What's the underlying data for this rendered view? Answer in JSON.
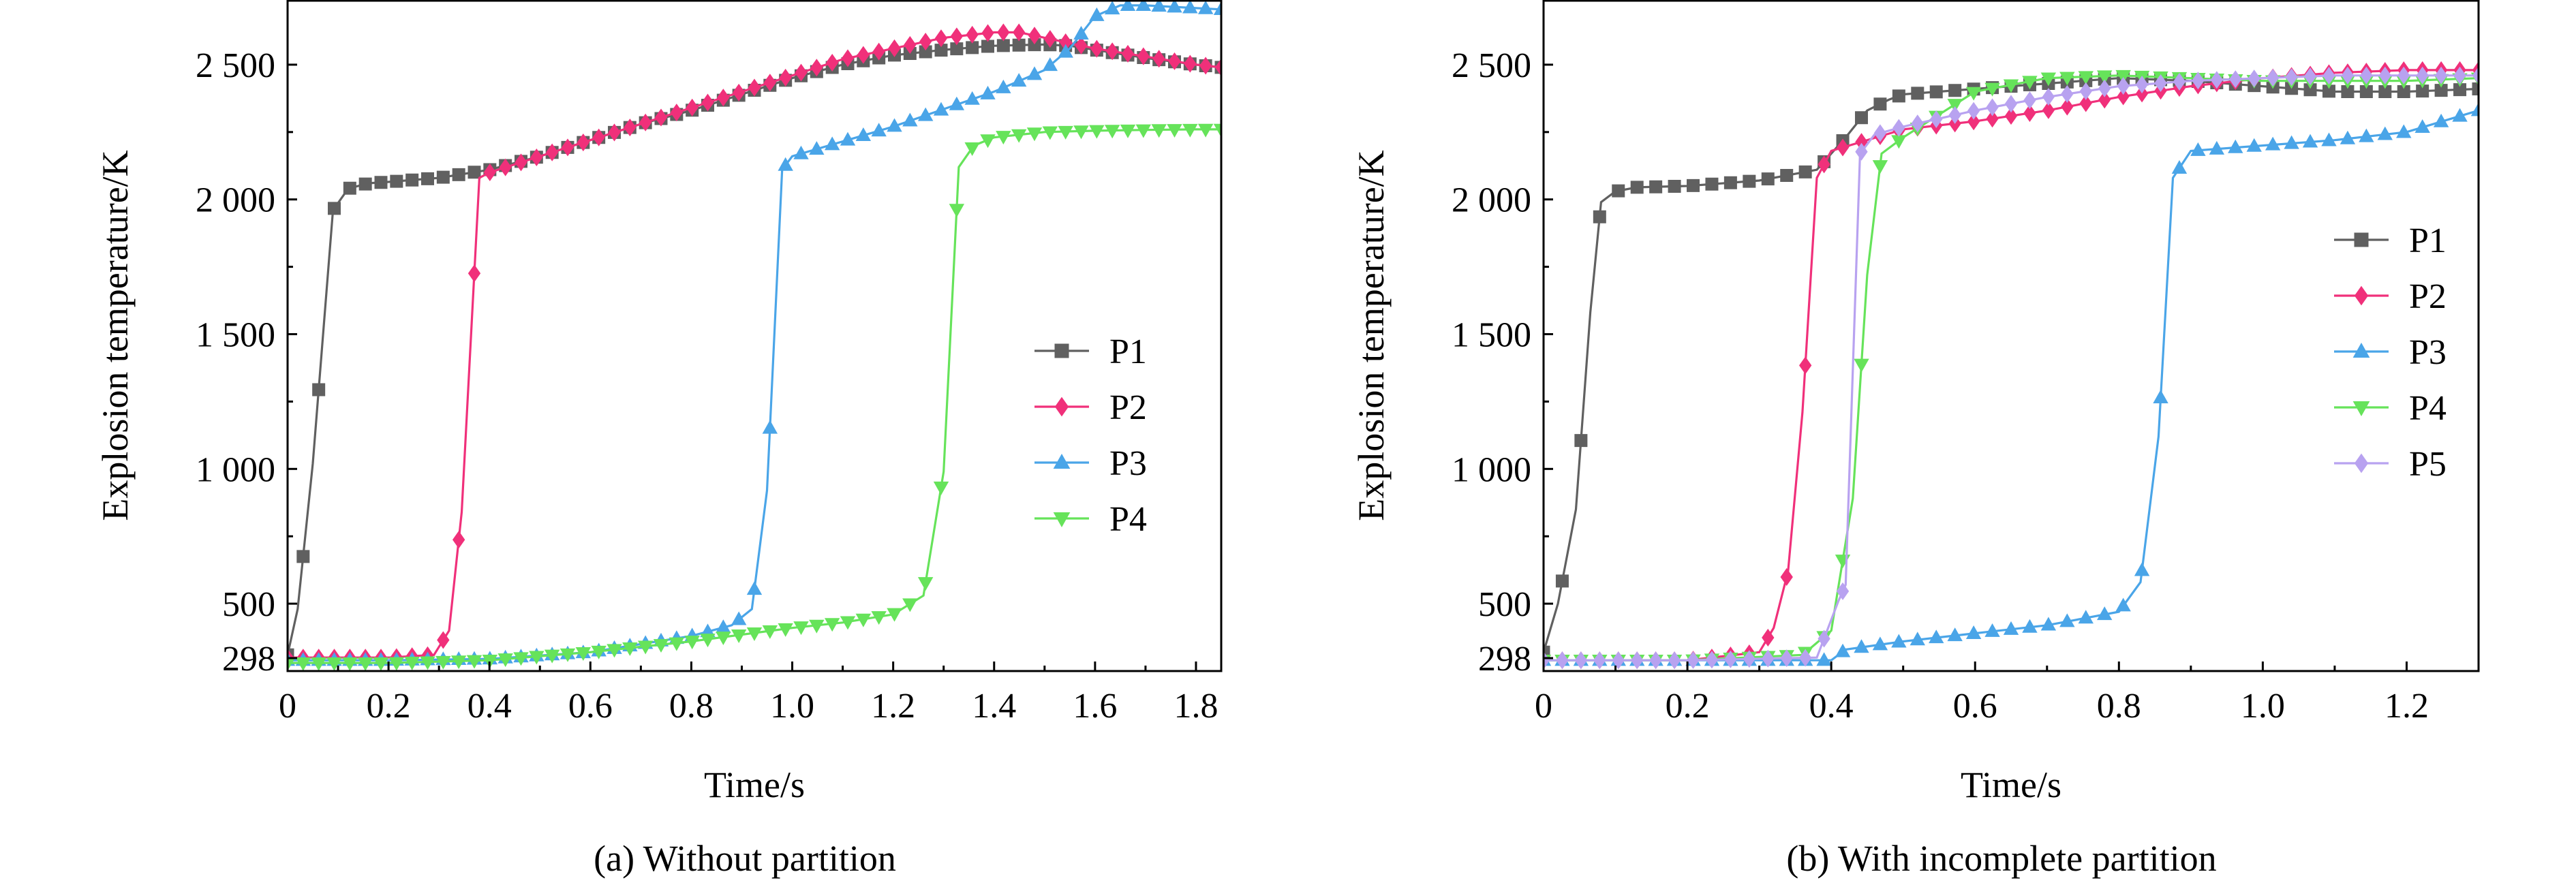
{
  "chart_data": [
    {
      "type": "line",
      "caption": "(a) Without partition",
      "xlabel": "Time/s",
      "ylabel": "Explosion temperature/K",
      "xlim": [
        0,
        1.85
      ],
      "ylim": [
        250,
        2740
      ],
      "xticks": [
        0,
        0.2,
        0.4,
        0.6,
        0.8,
        1.0,
        1.2,
        1.4,
        1.6,
        1.8
      ],
      "xtick_labels": [
        "0",
        "0.2",
        "0.4",
        "0.6",
        "0.8",
        "1.0",
        "1.2",
        "1.4",
        "1.6",
        "1.8"
      ],
      "yticks": [
        298,
        500,
        1000,
        1500,
        2000,
        2500
      ],
      "ytick_labels": [
        "298",
        "500",
        "1 000",
        "1 500",
        "2 000",
        "2 500"
      ],
      "legend_position": "right",
      "series": [
        {
          "name": "P1",
          "color": "#606060",
          "marker": "square",
          "x": [
            0,
            0.02,
            0.05,
            0.09,
            0.12,
            0.16,
            0.2,
            0.3,
            0.4,
            0.5,
            0.6,
            0.7,
            0.8,
            0.9,
            1.0,
            1.1,
            1.2,
            1.3,
            1.4,
            1.5,
            1.55,
            1.6,
            1.7,
            1.8,
            1.85
          ],
          "y": [
            310,
            480,
            1020,
            1960,
            2040,
            2060,
            2065,
            2080,
            2110,
            2160,
            2220,
            2280,
            2330,
            2390,
            2450,
            2500,
            2535,
            2555,
            2570,
            2575,
            2570,
            2555,
            2525,
            2500,
            2490
          ]
        },
        {
          "name": "P2",
          "color": "#f0307a",
          "marker": "diamond",
          "x": [
            0,
            0.1,
            0.2,
            0.29,
            0.32,
            0.345,
            0.38,
            0.4,
            0.5,
            0.6,
            0.7,
            0.8,
            0.9,
            1.0,
            1.1,
            1.2,
            1.3,
            1.4,
            1.45,
            1.5,
            1.6,
            1.7,
            1.8,
            1.85
          ],
          "y": [
            300,
            300,
            300,
            310,
            400,
            840,
            2080,
            2100,
            2160,
            2220,
            2280,
            2340,
            2400,
            2460,
            2520,
            2560,
            2600,
            2620,
            2620,
            2600,
            2560,
            2530,
            2500,
            2490
          ]
        },
        {
          "name": "P3",
          "color": "#4aa5e8",
          "marker": "triangle-up",
          "x": [
            0,
            0.2,
            0.4,
            0.6,
            0.8,
            0.88,
            0.92,
            0.95,
            0.98,
            1.0,
            1.2,
            1.4,
            1.5,
            1.55,
            1.6,
            1.65,
            1.7,
            1.8,
            1.85
          ],
          "y": [
            290,
            290,
            295,
            320,
            380,
            420,
            480,
            920,
            2110,
            2160,
            2270,
            2400,
            2480,
            2560,
            2680,
            2720,
            2720,
            2710,
            2705
          ]
        },
        {
          "name": "P4",
          "color": "#66e35a",
          "marker": "triangle-down",
          "x": [
            0,
            0.2,
            0.4,
            0.6,
            0.8,
            1.0,
            1.1,
            1.2,
            1.26,
            1.3,
            1.33,
            1.36,
            1.4,
            1.5,
            1.6,
            1.7,
            1.8,
            1.85
          ],
          "y": [
            280,
            280,
            290,
            320,
            360,
            410,
            430,
            460,
            530,
            990,
            2120,
            2200,
            2230,
            2250,
            2255,
            2258,
            2260,
            2260
          ]
        }
      ]
    },
    {
      "type": "line",
      "caption": "(b) With incomplete partition",
      "xlabel": "Time/s",
      "ylabel": "Explosion temperature/K",
      "xlim": [
        0,
        1.3
      ],
      "ylim": [
        250,
        2740
      ],
      "xticks": [
        0,
        0.2,
        0.4,
        0.6,
        0.8,
        1.0,
        1.2
      ],
      "xtick_labels": [
        "0",
        "0.2",
        "0.4",
        "0.6",
        "0.8",
        "1.0",
        "1.2"
      ],
      "yticks": [
        298,
        500,
        1000,
        1500,
        2000,
        2500
      ],
      "ytick_labels": [
        "298",
        "500",
        "1 000",
        "1 500",
        "2 000",
        "2 500"
      ],
      "legend_position": "right",
      "series": [
        {
          "name": "P1",
          "color": "#606060",
          "marker": "square",
          "x": [
            0,
            0.02,
            0.045,
            0.065,
            0.08,
            0.1,
            0.13,
            0.2,
            0.3,
            0.38,
            0.42,
            0.45,
            0.48,
            0.5,
            0.6,
            0.7,
            0.8,
            0.9,
            1.0,
            1.1,
            1.2,
            1.3
          ],
          "y": [
            320,
            500,
            850,
            1580,
            1990,
            2030,
            2045,
            2050,
            2070,
            2110,
            2230,
            2330,
            2370,
            2390,
            2410,
            2430,
            2450,
            2440,
            2420,
            2400,
            2400,
            2410
          ]
        },
        {
          "name": "P2",
          "color": "#f0307a",
          "marker": "diamond",
          "x": [
            0,
            0.2,
            0.3,
            0.32,
            0.34,
            0.36,
            0.38,
            0.4,
            0.5,
            0.6,
            0.7,
            0.8,
            0.9,
            1.0,
            1.1,
            1.2,
            1.3
          ],
          "y": [
            290,
            290,
            320,
            410,
            620,
            1210,
            2080,
            2180,
            2260,
            2290,
            2330,
            2380,
            2420,
            2450,
            2470,
            2480,
            2480
          ]
        },
        {
          "name": "P3",
          "color": "#4aa5e8",
          "marker": "triangle-up",
          "x": [
            0,
            0.2,
            0.4,
            0.42,
            0.5,
            0.6,
            0.7,
            0.8,
            0.83,
            0.855,
            0.875,
            0.9,
            1.0,
            1.1,
            1.2,
            1.3
          ],
          "y": [
            290,
            290,
            290,
            330,
            360,
            390,
            420,
            470,
            580,
            1120,
            2080,
            2180,
            2200,
            2220,
            2250,
            2330
          ]
        },
        {
          "name": "P4",
          "color": "#66e35a",
          "marker": "triangle-down",
          "x": [
            0,
            0.2,
            0.36,
            0.4,
            0.43,
            0.45,
            0.47,
            0.5,
            0.6,
            0.7,
            0.8,
            0.9,
            1.0,
            1.1,
            1.2,
            1.3
          ],
          "y": [
            290,
            290,
            310,
            400,
            890,
            1720,
            2170,
            2230,
            2400,
            2450,
            2460,
            2450,
            2440,
            2440,
            2440,
            2450
          ]
        },
        {
          "name": "P5",
          "color": "#b8a2f0",
          "marker": "diamond",
          "x": [
            0,
            0.2,
            0.38,
            0.41,
            0.42,
            0.44,
            0.46,
            0.5,
            0.6,
            0.7,
            0.8,
            0.9,
            1.0,
            1.1,
            1.2,
            1.3
          ],
          "y": [
            290,
            290,
            300,
            510,
            570,
            2170,
            2240,
            2270,
            2330,
            2380,
            2420,
            2440,
            2450,
            2460,
            2460,
            2460
          ]
        }
      ]
    }
  ]
}
